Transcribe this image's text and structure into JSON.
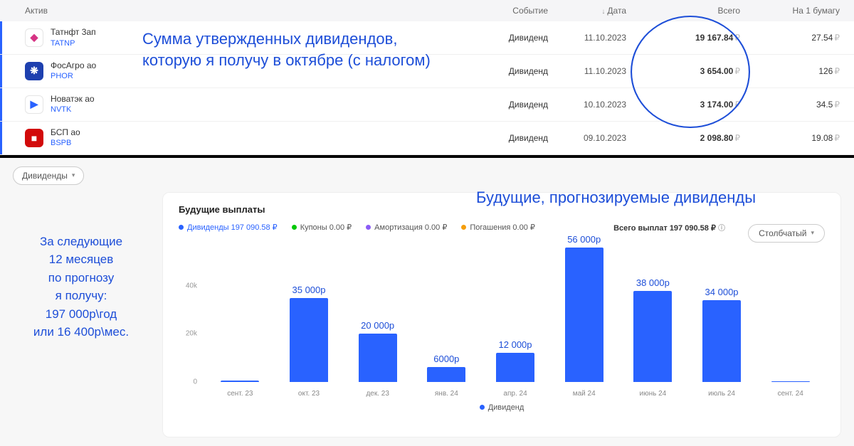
{
  "colors": {
    "accent_blue": "#1d4ed8",
    "link_blue": "#2962ff",
    "bar_blue": "#2962ff",
    "legend_green": "#00c805",
    "legend_purple": "#8b5cf6",
    "legend_orange": "#f59e0b"
  },
  "table": {
    "headers": {
      "asset": "Актив",
      "event": "Событие",
      "date": "Дата",
      "total": "Всего",
      "per_unit": "На 1 бумагу"
    },
    "rows": [
      {
        "name": "Татнфт 3ап",
        "ticker": "TATNP",
        "icon_bg": "#ffffff",
        "icon_color": "#d63384",
        "icon_glyph": "◆",
        "icon_border": "#e5e5e5",
        "event": "Дивиденд",
        "date": "11.10.2023",
        "total": "19 167.84",
        "per": "27.54",
        "accent": "#2962ff"
      },
      {
        "name": "ФосАгро ао",
        "ticker": "PHOR",
        "icon_bg": "#1e40af",
        "icon_color": "#ffffff",
        "icon_glyph": "❋",
        "event": "Дивиденд",
        "date": "11.10.2023",
        "total": "3 654.00",
        "per": "126",
        "accent": "#2962ff"
      },
      {
        "name": "Новатэк ао",
        "ticker": "NVTK",
        "icon_bg": "#ffffff",
        "icon_color": "#2962ff",
        "icon_glyph": "▶",
        "icon_border": "#e5e5e5",
        "event": "Дивиденд",
        "date": "10.10.2023",
        "total": "3 174.00",
        "per": "34.5",
        "accent": "#2962ff"
      },
      {
        "name": "БСП ао",
        "ticker": "BSPB",
        "icon_bg": "#d20a0a",
        "icon_color": "#ffffff",
        "icon_glyph": "■",
        "event": "Дивиденд",
        "date": "09.10.2023",
        "total": "2 098.80",
        "per": "19.08",
        "accent": "#2962ff"
      }
    ]
  },
  "annotations": {
    "top_line1": "Сумма утвержденных дивидендов,",
    "top_line2": "которую я получу в октябре (с налогом)",
    "left_text": "За следующие\n12 месяцев\nпо прогнозу\nя получу:\n197 000р\\год\nили 16 400р\\мес.",
    "chart_heading": "Будущие, прогнозируемые дивиденды"
  },
  "filter": {
    "label": "Дивиденды"
  },
  "chart": {
    "title": "Будущие выплаты",
    "type_button": "Столбчатый",
    "legend": {
      "dividends": "Дивиденды 197 090.58 ₽",
      "coupons": "Купоны 0.00 ₽",
      "amort": "Амортизация 0.00 ₽",
      "redempt": "Погашения 0.00 ₽",
      "total": "Всего выплат 197 090.58 ₽"
    },
    "bottom_legend": "Дивиденд",
    "y_max": 60000,
    "y_ticks": [
      {
        "value": 0,
        "label": "0"
      },
      {
        "value": 20000,
        "label": "20k"
      },
      {
        "value": 40000,
        "label": "40k"
      }
    ],
    "bars": [
      {
        "x": "сент. 23",
        "value": 600,
        "label": ""
      },
      {
        "x": "окт. 23",
        "value": 35000,
        "label": "35 000р"
      },
      {
        "x": "дек. 23",
        "value": 20000,
        "label": "20 000р"
      },
      {
        "x": "янв. 24",
        "value": 6000,
        "label": "6000р"
      },
      {
        "x": "апр. 24",
        "value": 12000,
        "label": "12 000р"
      },
      {
        "x": "май 24",
        "value": 56000,
        "label": "56 000р"
      },
      {
        "x": "июнь 24",
        "value": 38000,
        "label": "38 000р"
      },
      {
        "x": "июль 24",
        "value": 34000,
        "label": "34 000р"
      },
      {
        "x": "сент. 24",
        "value": 300,
        "label": ""
      }
    ]
  },
  "currency_symbol": "₽"
}
